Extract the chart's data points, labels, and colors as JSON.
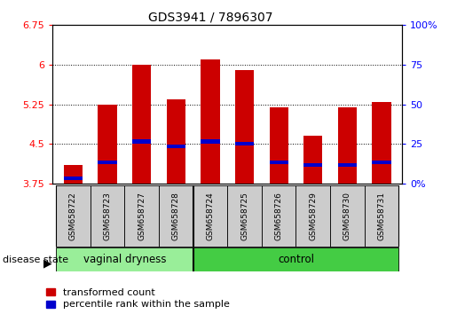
{
  "title": "GDS3941 / 7896307",
  "samples": [
    "GSM658722",
    "GSM658723",
    "GSM658727",
    "GSM658728",
    "GSM658724",
    "GSM658725",
    "GSM658726",
    "GSM658729",
    "GSM658730",
    "GSM658731"
  ],
  "red_values": [
    4.1,
    5.25,
    6.0,
    5.35,
    6.1,
    5.9,
    5.2,
    4.65,
    5.2,
    5.3
  ],
  "blue_values": [
    3.85,
    4.15,
    4.55,
    4.45,
    4.55,
    4.5,
    4.15,
    4.1,
    4.1,
    4.15
  ],
  "ymin": 3.75,
  "ymax": 6.75,
  "yticks": [
    3.75,
    4.5,
    5.25,
    6.0,
    6.75
  ],
  "ytick_labels": [
    "3.75",
    "4.5",
    "5.25",
    "6",
    "6.75"
  ],
  "right_yticks": [
    0,
    25,
    50,
    75,
    100
  ],
  "right_ytick_labels": [
    "0%",
    "25",
    "50",
    "75",
    "100%"
  ],
  "group1_label": "vaginal dryness",
  "group2_label": "control",
  "group1_count": 4,
  "group2_count": 6,
  "legend_red": "transformed count",
  "legend_blue": "percentile rank within the sample",
  "bar_color": "#cc0000",
  "blue_color": "#0000cc",
  "group1_bg": "#99ee99",
  "group2_bg": "#44cc44",
  "sample_bg": "#cccccc",
  "bar_width": 0.55,
  "base_value": 3.75,
  "blue_bar_height": 0.07
}
